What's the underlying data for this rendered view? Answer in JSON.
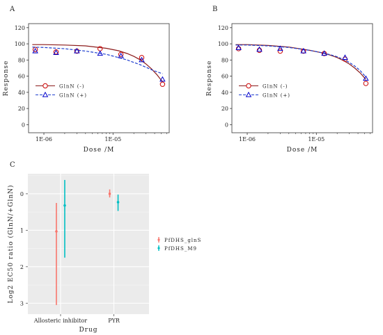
{
  "chart_data": [
    {
      "panel": "A",
      "type": "line",
      "xlabel": "Dose /M",
      "ylabel": "Response",
      "xscale": "log",
      "xlim": [
        6e-07,
        6.5e-05
      ],
      "ylim": [
        -10,
        125
      ],
      "xtick_values": [
        1e-06,
        1e-05
      ],
      "xtick_labels": [
        "1E-06",
        "1E-05"
      ],
      "yticks": [
        0,
        20,
        40,
        60,
        80,
        100,
        120
      ],
      "legend_position": "center-left",
      "series": [
        {
          "name": "GlnN (-)",
          "color": "#cc0000",
          "marker": "circle",
          "x": [
            7.5e-07,
            1.5e-06,
            3e-06,
            6.5e-06,
            1.3e-05,
            2.6e-05,
            5.2e-05
          ],
          "y": [
            93,
            90,
            91,
            94,
            87,
            83,
            50
          ],
          "fit_x": [
            6.8e-07,
            1e-06,
            2e-06,
            4e-06,
            8e-06,
            1.2e-05,
            1.6e-05,
            2e-05,
            2.5e-05,
            3e-05,
            3.6e-05,
            4.3e-05,
            5.2e-05
          ],
          "fit_y": [
            99,
            99,
            98.5,
            97.5,
            94.5,
            91.5,
            88,
            84.5,
            80,
            75,
            69,
            62,
            53
          ]
        },
        {
          "name": "GlnN (+)",
          "color": "#0000cc",
          "marker": "triangle",
          "x": [
            7.5e-07,
            1.5e-06,
            3e-06,
            6.5e-06,
            1.3e-05,
            2.6e-05,
            5.2e-05
          ],
          "y": [
            91,
            89,
            91,
            88,
            85,
            80,
            56
          ],
          "fit_x": [
            6.8e-07,
            1e-06,
            2e-06,
            4e-06,
            8e-06,
            1.2e-05,
            1.6e-05,
            2e-05,
            2.5e-05,
            3e-05,
            3.6e-05,
            4.3e-05,
            5.2e-05
          ],
          "fit_y": [
            96,
            95.5,
            94,
            91,
            87,
            83,
            80,
            77,
            74,
            71,
            68,
            65.5,
            63
          ]
        }
      ]
    },
    {
      "panel": "B",
      "type": "line",
      "xlabel": "Dose /M",
      "ylabel": "Response",
      "xscale": "log",
      "xlim": [
        6e-07,
        6.5e-05
      ],
      "ylim": [
        -10,
        125
      ],
      "xtick_values": [
        1e-06,
        1e-05
      ],
      "xtick_labels": [
        "1E-06",
        "1E-05"
      ],
      "yticks": [
        0,
        20,
        40,
        60,
        80,
        100,
        120
      ],
      "legend_position": "center-left",
      "series": [
        {
          "name": "GlnN (-)",
          "color": "#cc0000",
          "marker": "circle",
          "x": [
            7.5e-07,
            1.5e-06,
            3e-06,
            6.5e-06,
            1.3e-05,
            2.6e-05,
            5.2e-05
          ],
          "y": [
            94,
            92,
            91,
            91,
            88,
            81,
            51
          ],
          "fit_x": [
            6.8e-07,
            1e-06,
            2e-06,
            4e-06,
            8e-06,
            1.2e-05,
            1.6e-05,
            2e-05,
            2.5e-05,
            3e-05,
            3.6e-05,
            4.3e-05,
            5.2e-05
          ],
          "fit_y": [
            99,
            99,
            98,
            96,
            92,
            89,
            86,
            83,
            79,
            75,
            70,
            64,
            56
          ]
        },
        {
          "name": "GlnN (+)",
          "color": "#0000cc",
          "marker": "triangle",
          "x": [
            7.5e-07,
            1.5e-06,
            3e-06,
            6.5e-06,
            1.3e-05,
            2.6e-05,
            5.2e-05
          ],
          "y": [
            95,
            93,
            94,
            91,
            88,
            83,
            57
          ],
          "fit_x": [
            6.8e-07,
            1e-06,
            2e-06,
            4e-06,
            8e-06,
            1.2e-05,
            1.6e-05,
            2e-05,
            2.5e-05,
            3e-05,
            3.6e-05,
            4.3e-05,
            5.2e-05
          ],
          "fit_y": [
            98.5,
            98.5,
            97.5,
            95.5,
            92,
            89,
            86.5,
            84,
            80.5,
            77,
            72.5,
            67,
            59
          ]
        }
      ]
    },
    {
      "panel": "C",
      "type": "scatter",
      "subtype": "point-range",
      "xlabel": "Drug",
      "ylabel": "Log2 EC50 ratio (GlnN/+GlnN)",
      "categories": [
        "Allosteric inhibitor",
        "PYR"
      ],
      "ylim": [
        -3.3,
        0.55
      ],
      "yticks": [
        0,
        -1,
        -2,
        -3
      ],
      "ytick_labels": [
        "0",
        "1",
        "2",
        "3"
      ],
      "legend_position": "right",
      "series": [
        {
          "name": "PfDHS_glnS",
          "color": "#f8766d",
          "values": [
            -1.03,
            0.0
          ],
          "lower": [
            -3.05,
            -0.1
          ],
          "upper": [
            -0.25,
            0.12
          ]
        },
        {
          "name": "PfDHS_M9",
          "color": "#00bfc4",
          "values": [
            -0.32,
            -0.23
          ],
          "lower": [
            -1.75,
            -0.47
          ],
          "upper": [
            0.38,
            -0.02
          ]
        }
      ]
    }
  ]
}
